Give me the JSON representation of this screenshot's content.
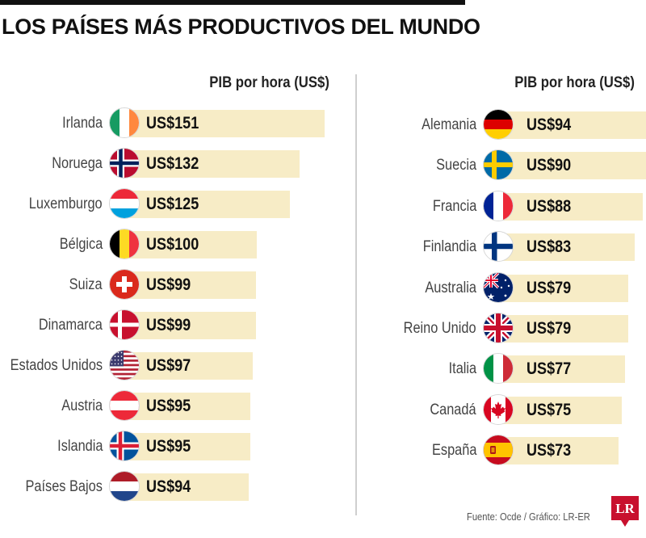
{
  "title": "LOS PAÍSES MÁS PRODUCTIVOS DEL MUNDO",
  "source": "Fuente: Ocde / Gráfico: LR-ER",
  "logo_text": "LR",
  "colors": {
    "bar": "#f7ecc6",
    "accent": "#c8102e"
  },
  "chart_data": [
    {
      "type": "bar",
      "column_header": "PIB por hora (US$)",
      "xlim": [
        0,
        151
      ],
      "categories": [
        "Irlanda",
        "Noruega",
        "Luxemburgo",
        "Bélgica",
        "Suiza",
        "Dinamarca",
        "Estados Unidos",
        "Austria",
        "Islandia",
        "Países Bajos"
      ],
      "values": [
        151,
        132,
        125,
        100,
        99,
        99,
        97,
        95,
        95,
        94
      ],
      "value_labels": [
        "US$151",
        "US$132",
        "US$125",
        "US$100",
        "US$99",
        "US$99",
        "US$97",
        "US$95",
        "US$95",
        "US$94"
      ],
      "flags": [
        "ireland",
        "norway",
        "luxembourg",
        "belgium",
        "switzerland",
        "denmark",
        "usa",
        "austria",
        "iceland",
        "netherlands"
      ]
    },
    {
      "type": "bar",
      "column_header": "PIB por hora (US$)",
      "xlim": [
        0,
        151
      ],
      "categories": [
        "Alemania",
        "Suecia",
        "Francia",
        "Finlandia",
        "Australia",
        "Reino Unido",
        "Italia",
        "Canadá",
        "España"
      ],
      "values": [
        94,
        90,
        88,
        83,
        79,
        79,
        77,
        75,
        73
      ],
      "value_labels": [
        "US$94",
        "US$90",
        "US$88",
        "US$83",
        "US$79",
        "US$79",
        "US$77",
        "US$75",
        "US$73"
      ],
      "flags": [
        "germany",
        "sweden",
        "france",
        "finland",
        "australia",
        "uk",
        "italy",
        "canada",
        "spain"
      ]
    }
  ]
}
